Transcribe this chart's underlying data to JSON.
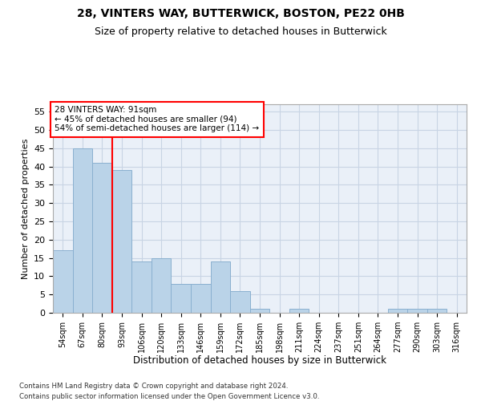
{
  "title1": "28, VINTERS WAY, BUTTERWICK, BOSTON, PE22 0HB",
  "title2": "Size of property relative to detached houses in Butterwick",
  "xlabel": "Distribution of detached houses by size in Butterwick",
  "ylabel": "Number of detached properties",
  "categories": [
    "54sqm",
    "67sqm",
    "80sqm",
    "93sqm",
    "106sqm",
    "120sqm",
    "133sqm",
    "146sqm",
    "159sqm",
    "172sqm",
    "185sqm",
    "198sqm",
    "211sqm",
    "224sqm",
    "237sqm",
    "251sqm",
    "264sqm",
    "277sqm",
    "290sqm",
    "303sqm",
    "316sqm"
  ],
  "values": [
    17,
    45,
    41,
    39,
    14,
    15,
    8,
    8,
    14,
    6,
    1,
    0,
    1,
    0,
    0,
    0,
    0,
    1,
    1,
    1,
    0
  ],
  "bar_color": "#bad3e8",
  "bar_edge_color": "#8ab0d0",
  "vline_color": "red",
  "vline_x": 2.5,
  "annotation_lines": [
    "28 VINTERS WAY: 91sqm",
    "← 45% of detached houses are smaller (94)",
    "54% of semi-detached houses are larger (114) →"
  ],
  "ylim": [
    0,
    57
  ],
  "yticks": [
    0,
    5,
    10,
    15,
    20,
    25,
    30,
    35,
    40,
    45,
    50,
    55
  ],
  "grid_color": "#c8d4e4",
  "background_color": "#eaf0f8",
  "footnote1": "Contains HM Land Registry data © Crown copyright and database right 2024.",
  "footnote2": "Contains public sector information licensed under the Open Government Licence v3.0."
}
